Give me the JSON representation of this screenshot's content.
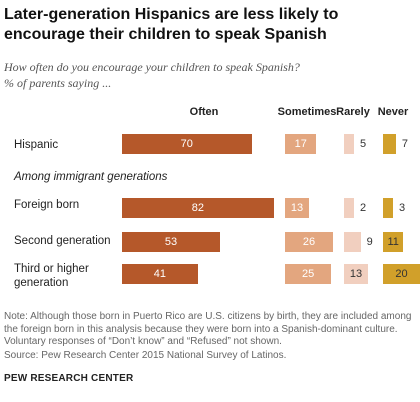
{
  "title": "Later-generation  Hispanics are less likely to encourage their children to speak Spanish",
  "subtitle": "How often do you encourage your children to speak Spanish?",
  "unit_note": "% of parents saying ...",
  "section_label": "Among immigrant generations",
  "note": "Note: Although those born in Puerto Rico are U.S. citizens by birth, they are included among the foreign born in this analysis because they were born into a Spanish-dominant culture. Voluntary responses of “Don’t know” and “Refused” not shown.",
  "source": "Source: Pew Research Center 2015 National Survey of Latinos.",
  "brand": "PEW RESEARCH CENTER",
  "chart_data": {
    "type": "bar",
    "orientation": "horizontal",
    "stacked": false,
    "categories": [
      "Hispanic",
      "Foreign born",
      "Second generation",
      "Third or higher generation"
    ],
    "category_display": [
      "Hispanic",
      "Foreign born",
      "Second generation",
      "Third or higher\ngeneration"
    ],
    "series": [
      {
        "name": "Often",
        "values": [
          70,
          82,
          53,
          41
        ],
        "color": "#b5582a",
        "label_color": "#ffffff"
      },
      {
        "name": "Sometimes",
        "values": [
          17,
          13,
          26,
          25
        ],
        "color": "#e3a67f",
        "label_color": "#ffffff"
      },
      {
        "name": "Rarely",
        "values": [
          5,
          2,
          9,
          13
        ],
        "color": "#f1cfbf",
        "label_color": "#333333"
      },
      {
        "name": "Never",
        "values": [
          7,
          3,
          11,
          20
        ],
        "color": "#d1a02a",
        "label_color": "#333333"
      }
    ]
  }
}
